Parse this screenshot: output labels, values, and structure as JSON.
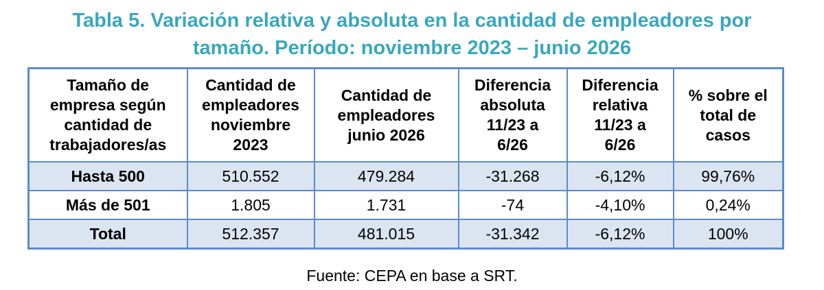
{
  "title": {
    "line1": "Tabla 5. Variación relativa y absoluta en la cantidad de empleadores por",
    "line2": "tamaño. Período: noviembre 2023 – junio 2026"
  },
  "table": {
    "headers": [
      [
        "Tamaño de",
        "empresa según",
        "cantidad de",
        "trabajadores/as"
      ],
      [
        "Cantidad de",
        "empleadores",
        "noviembre",
        "2023"
      ],
      [
        "Cantidad de",
        "empleadores",
        "junio 2026"
      ],
      [
        "Diferencia",
        "absoluta",
        "11/23 a",
        "6/26"
      ],
      [
        "Diferencia",
        "relativa",
        "11/23 a",
        "6/26"
      ],
      [
        "% sobre el",
        "total de",
        "casos"
      ]
    ],
    "rows": [
      [
        "Hasta 500",
        "510.552",
        "479.284",
        "-31.268",
        "-6,12%",
        "99,76%"
      ],
      [
        "Más de 501",
        "1.805",
        "1.731",
        "-74",
        "-4,10%",
        "0,24%"
      ],
      [
        "Total",
        "512.357",
        "481.015",
        "-31.342",
        "-6,12%",
        "100%"
      ]
    ]
  },
  "source": "Fuente: CEPA en base a SRT.",
  "colors": {
    "title": "#3aa6bf",
    "border": "#5b8bc9",
    "shaded_row": "#dbe5f1"
  }
}
